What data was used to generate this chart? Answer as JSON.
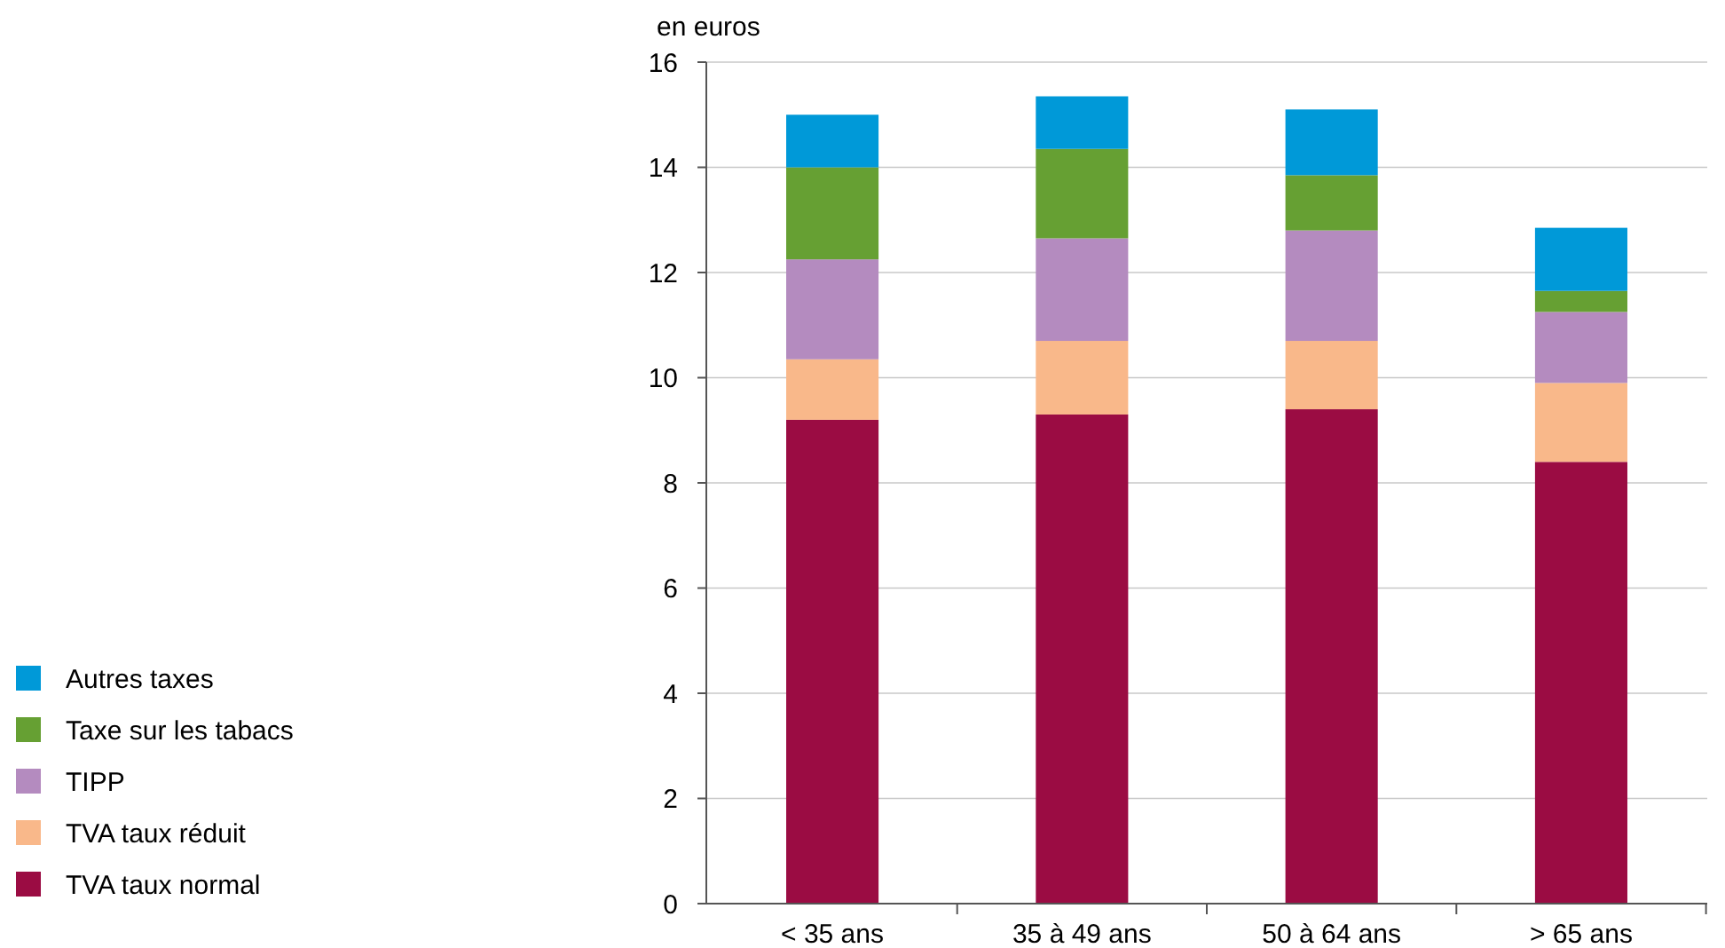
{
  "chart_data": {
    "type": "bar",
    "ylabel": "en euros",
    "stacked": true,
    "categories": [
      "< 35 ans",
      "35 à 49 ans",
      "50 à 64 ans",
      "> 65 ans"
    ],
    "series": [
      {
        "name": "TVA taux normal",
        "color": "#9b0c43",
        "values": [
          9.2,
          9.3,
          9.4,
          8.4
        ]
      },
      {
        "name": "TVA taux réduit",
        "color": "#f9b88a",
        "values": [
          1.15,
          1.4,
          1.3,
          1.5
        ]
      },
      {
        "name": "TIPP",
        "color": "#b48bbf",
        "values": [
          1.9,
          1.95,
          2.1,
          1.35
        ]
      },
      {
        "name": "Taxe sur les tabacs",
        "color": "#66a033",
        "values": [
          1.75,
          1.7,
          1.05,
          0.4
        ]
      },
      {
        "name": "Autres taxes",
        "color": "#0099d8",
        "values": [
          1.0,
          1.0,
          1.25,
          1.2
        ]
      }
    ],
    "ylim": [
      0,
      16
    ],
    "yticks": [
      0,
      2,
      4,
      6,
      8,
      10,
      12,
      14,
      16
    ],
    "grid": "y",
    "legend": "bottom left"
  }
}
